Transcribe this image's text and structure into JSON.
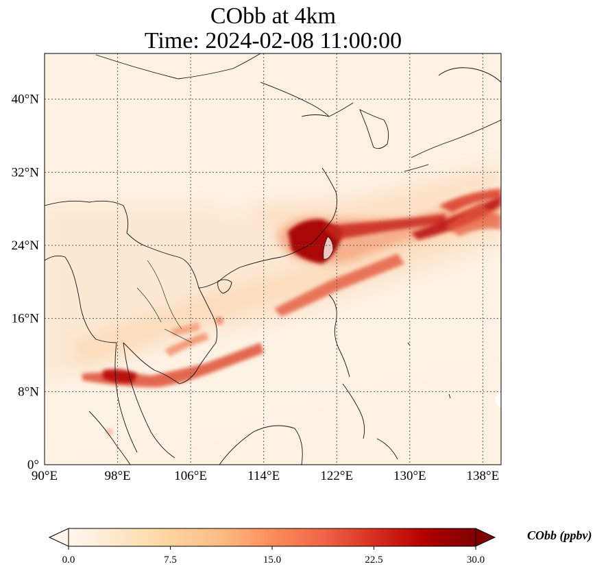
{
  "title": {
    "line1": "CObb at 4km",
    "line2": "Time: 2024-02-08 11:00:00"
  },
  "map": {
    "lon_range": [
      90,
      140
    ],
    "lat_range": [
      0,
      45
    ],
    "lon_ticks": [
      "90°E",
      "98°E",
      "106°E",
      "114°E",
      "122°E",
      "130°E",
      "138°E"
    ],
    "lon_values": [
      90,
      98,
      106,
      114,
      122,
      130,
      138
    ],
    "lat_ticks": [
      "0°",
      "8°N",
      "16°N",
      "24°N",
      "32°N",
      "40°N"
    ],
    "lat_values": [
      0,
      8,
      16,
      24,
      32,
      40
    ],
    "gridlines": true,
    "gridline_style": "dotted"
  },
  "colorbar": {
    "label": "CObb (ppbv)",
    "ticks": [
      "0.0",
      "7.5",
      "15.0",
      "22.5",
      "30.0"
    ],
    "tick_values": [
      0,
      7.5,
      15,
      22.5,
      30
    ],
    "min": 0,
    "max": 30,
    "colormap": "OrRd",
    "colors": [
      "#fff7ec",
      "#fee8c8",
      "#fdd49e",
      "#fdbb84",
      "#fc8d59",
      "#ef6548",
      "#d7301f",
      "#b30000",
      "#7f0000"
    ],
    "extend": "both"
  }
}
